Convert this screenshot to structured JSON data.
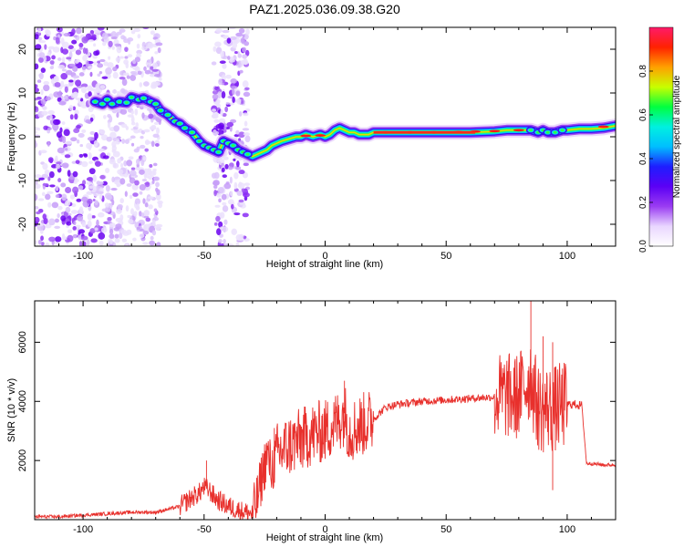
{
  "title": "PAZ1.2025.036.09.38.G20",
  "chart_data": [
    {
      "type": "heatmap",
      "xlabel": "Height of straight line (km)",
      "ylabel": "Frequency (Hz)",
      "xlim": [
        -120,
        120
      ],
      "ylim": [
        -25,
        25
      ],
      "xticks": [
        -100,
        -50,
        0,
        50,
        100
      ],
      "yticks": [
        -20,
        -10,
        0,
        10,
        20
      ],
      "ridge": {
        "x": [
          -95,
          -92,
          -90,
          -88,
          -85,
          -82,
          -80,
          -77,
          -75,
          -72,
          -70,
          -68,
          -65,
          -62,
          -60,
          -58,
          -55,
          -52,
          -50,
          -48,
          -46,
          -44,
          -42,
          -40,
          -38,
          -36,
          -34,
          -32,
          -30,
          -28,
          -26,
          -24,
          -22,
          -20,
          -18,
          -15,
          -12,
          -10,
          -8,
          -5,
          -2,
          0,
          2,
          4,
          6,
          8,
          10,
          12,
          14,
          16,
          18,
          20,
          25,
          30,
          40,
          50,
          60,
          70,
          75,
          80,
          85,
          88,
          90,
          92,
          95,
          98,
          100,
          105,
          110,
          115,
          120
        ],
        "y": [
          8,
          7.5,
          8.5,
          7.5,
          8,
          7.8,
          9,
          8.5,
          8.8,
          8,
          7.5,
          6,
          5,
          3.5,
          3,
          2,
          1,
          -1,
          -2,
          -2.5,
          -3,
          -3.5,
          -1,
          -1.5,
          -2,
          -3,
          -3.5,
          -4,
          -4.5,
          -4,
          -3.5,
          -3,
          -2,
          -1.5,
          -1,
          -0.5,
          0,
          0,
          0.5,
          0,
          0.5,
          0,
          0.5,
          1.5,
          2,
          1.5,
          1,
          1,
          0.5,
          0.5,
          0.5,
          1,
          1,
          1,
          1,
          1,
          1,
          1.2,
          1.5,
          1.5,
          1.5,
          1,
          1.5,
          1,
          1,
          1.5,
          1.5,
          1.8,
          1.8,
          2,
          2.5
        ]
      },
      "noise_regions": [
        [
          -120,
          -68
        ],
        [
          -46,
          -32
        ]
      ]
    },
    {
      "type": "line",
      "xlabel": "Height of straight line (km)",
      "ylabel": "SNR (10 * v/v)",
      "xlim": [
        -120,
        120
      ],
      "ylim": [
        0,
        7400
      ],
      "xticks": [
        -100,
        -50,
        0,
        50,
        100
      ],
      "yticks": [
        2000,
        4000,
        6000
      ],
      "series": [
        {
          "x": [
            -120,
            -110,
            -100,
            -90,
            -80,
            -70,
            -65,
            -60,
            -55,
            -52,
            -50,
            -48,
            -45,
            -40,
            -35,
            -30,
            -28,
            -26,
            -24,
            -22,
            -20,
            -15,
            -10,
            -5,
            0,
            5,
            8,
            10,
            15,
            20,
            25,
            30,
            40,
            50,
            60,
            70,
            75,
            78,
            80,
            82,
            84,
            85,
            86,
            88,
            90,
            92,
            94,
            96,
            98,
            100,
            102,
            104,
            105,
            106,
            108,
            110,
            115,
            120
          ],
          "y": [
            100,
            100,
            150,
            200,
            250,
            250,
            350,
            450,
            750,
            900,
            1100,
            1000,
            700,
            450,
            300,
            200,
            700,
            1500,
            2200,
            1700,
            2200,
            2500,
            2700,
            2900,
            3000,
            3300,
            3600,
            3000,
            3200,
            3400,
            3800,
            3900,
            4000,
            4050,
            4100,
            4150,
            4200,
            4100,
            4200,
            4500,
            4700,
            4900,
            4400,
            3800,
            3700,
            3800,
            3700,
            3800,
            3850,
            3900,
            3900,
            3900,
            3850,
            3900,
            1900,
            1900,
            1850,
            1850
          ]
        }
      ],
      "spikes": [
        {
          "x": -49,
          "y": 2000
        },
        {
          "x": -31,
          "y": 200
        },
        {
          "x": -21,
          "y": 3100
        },
        {
          "x": 8,
          "y": 4700
        },
        {
          "x": 85,
          "y": 7400
        },
        {
          "x": 90,
          "y": 6200
        },
        {
          "x": 94,
          "y": 6000
        },
        {
          "x": 94,
          "y": 1000
        }
      ]
    },
    {
      "type": "colorbar",
      "label": "Normalized spectral amplitude",
      "range": [
        0,
        1
      ],
      "ticks": [
        "0.0",
        "0.2",
        "0.4",
        "0.6",
        "0.8"
      ],
      "stops": [
        "#ffffff",
        "#e9d6ff",
        "#9a3cf2",
        "#5b00f5",
        "#1e1eff",
        "#00bfff",
        "#00f0e0",
        "#00ff40",
        "#c8ff00",
        "#ffa000",
        "#ff2200",
        "#ff1a6a"
      ]
    }
  ]
}
